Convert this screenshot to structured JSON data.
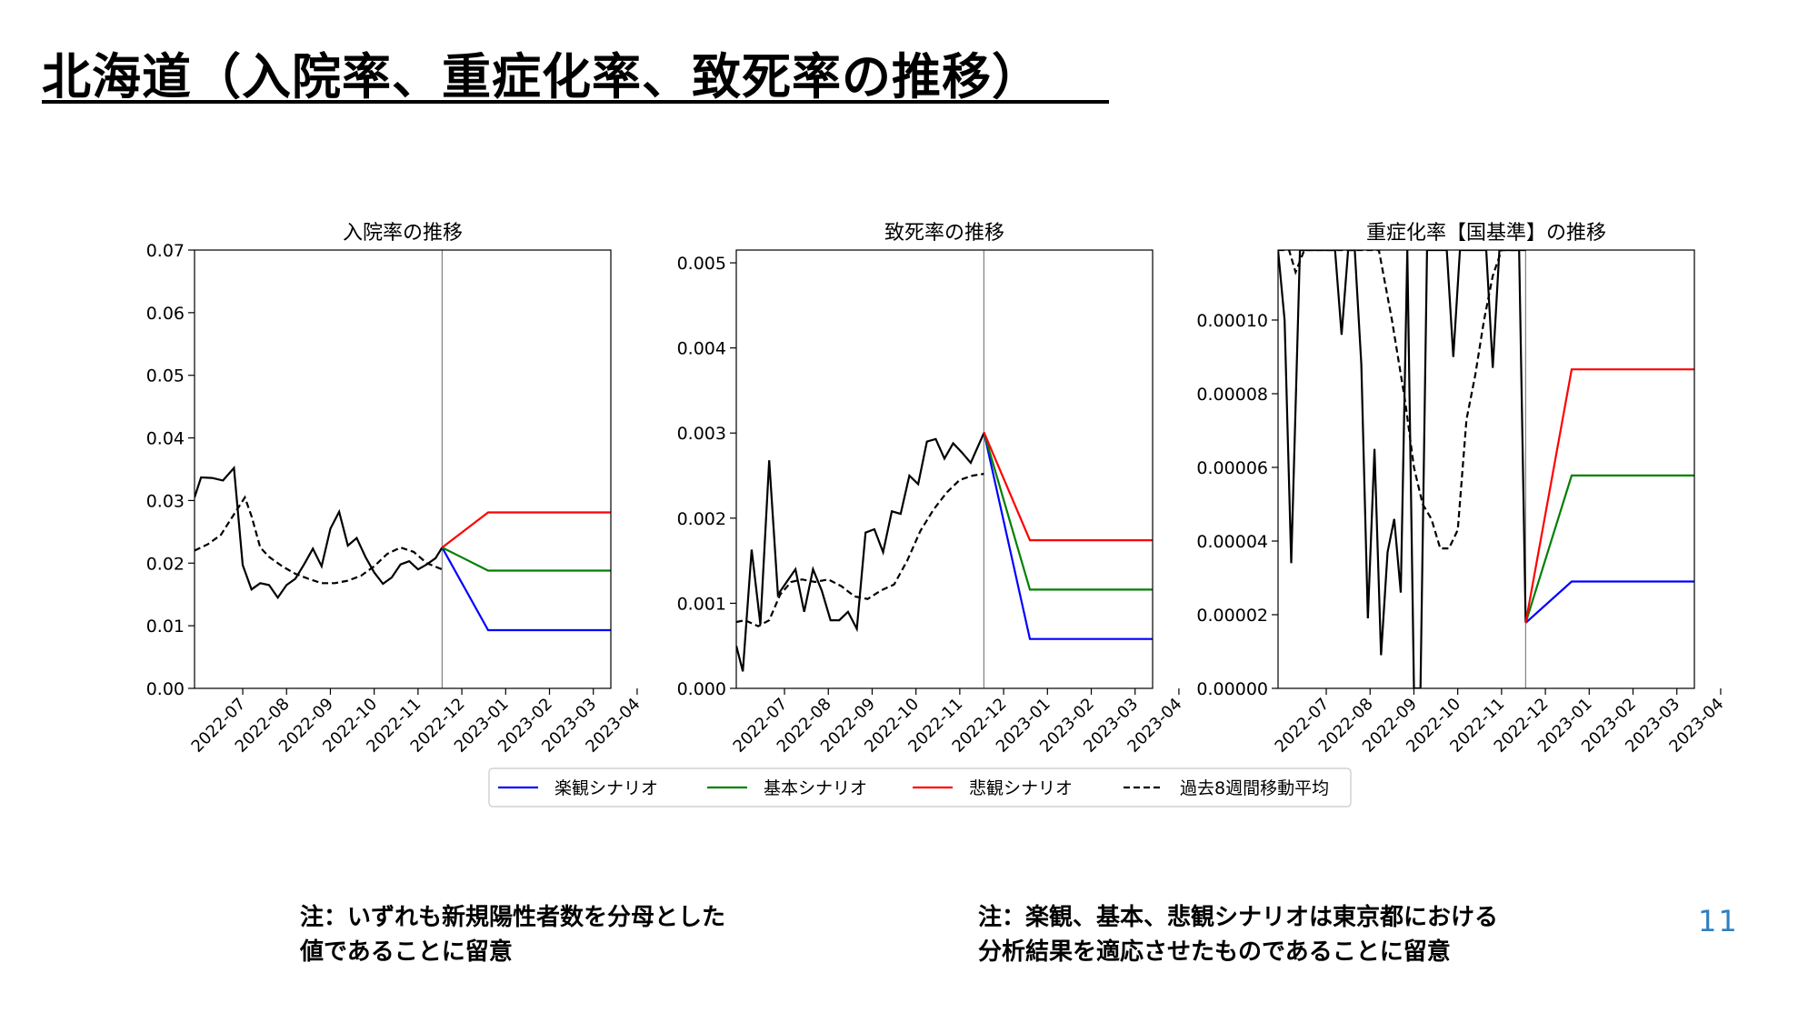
{
  "slide": {
    "title": "北海道（入院率、重症化率、致死率の推移）",
    "note_left": [
      "注：いずれも新規陽性者数を分母とした",
      "値であることに留意"
    ],
    "note_right": [
      "注：楽観、基本、悲観シナリオは東京都における",
      "分析結果を適応させたものであることに留意"
    ],
    "page_number": "11"
  },
  "legend": [
    {
      "label": "楽観シナリオ",
      "color": "#0000ff",
      "dashed": false
    },
    {
      "label": "基本シナリオ",
      "color": "#008000",
      "dashed": false
    },
    {
      "label": "悲観シナリオ",
      "color": "#ff0000",
      "dashed": false
    },
    {
      "label": "過去8週間移動平均",
      "color": "#000000",
      "dashed": true
    }
  ],
  "chart_data": [
    {
      "type": "line",
      "title": "入院率の推移",
      "x_tick_labels": [
        "2022-07",
        "2022-08",
        "2022-09",
        "2022-10",
        "2022-11",
        "2022-12",
        "2023-01",
        "2023-02",
        "2023-03",
        "2023-04"
      ],
      "x_ticks": [
        0,
        1,
        2,
        3,
        4,
        5,
        6,
        7,
        8,
        9
      ],
      "xlim": [
        -1.1,
        8.4
      ],
      "ylim": [
        0,
        0.07
      ],
      "y_ticks": [
        0.0,
        0.01,
        0.02,
        0.03,
        0.04,
        0.05,
        0.06,
        0.07
      ],
      "y_tick_labels": [
        "0.00",
        "0.01",
        "0.02",
        "0.03",
        "0.04",
        "0.05",
        "0.06",
        "0.07"
      ],
      "vline_x": 4.55,
      "actual": {
        "x": [
          -1.1,
          -0.95,
          -0.7,
          -0.45,
          -0.2,
          0.0,
          0.2,
          0.4,
          0.6,
          0.8,
          1.0,
          1.2,
          1.4,
          1.6,
          1.8,
          2.0,
          2.2,
          2.4,
          2.6,
          2.8,
          3.0,
          3.2,
          3.4,
          3.6,
          3.8,
          4.0,
          4.2,
          4.4,
          4.55
        ],
        "y": [
          0.0305,
          0.0337,
          0.0336,
          0.0332,
          0.0352,
          0.0197,
          0.0158,
          0.0168,
          0.0165,
          0.0145,
          0.0165,
          0.0175,
          0.0198,
          0.0223,
          0.0195,
          0.0255,
          0.0282,
          0.0228,
          0.024,
          0.021,
          0.0185,
          0.0167,
          0.0177,
          0.0198,
          0.0203,
          0.019,
          0.0198,
          0.0208,
          0.0225
        ]
      },
      "moving_average": {
        "x": [
          -1.1,
          -0.8,
          -0.5,
          -0.2,
          0.05,
          0.2,
          0.4,
          0.6,
          0.9,
          1.2,
          1.5,
          1.8,
          2.1,
          2.4,
          2.7,
          3.0,
          3.3,
          3.6,
          3.9,
          4.2,
          4.55
        ],
        "y": [
          0.022,
          0.023,
          0.0245,
          0.0278,
          0.0305,
          0.0275,
          0.0225,
          0.021,
          0.0195,
          0.0183,
          0.0175,
          0.0168,
          0.0168,
          0.0172,
          0.018,
          0.0195,
          0.0215,
          0.0225,
          0.0218,
          0.02,
          0.019
        ]
      },
      "series": [
        {
          "name": "楽観シナリオ",
          "x": [
            4.55,
            5.6,
            8.4
          ],
          "y": [
            0.0225,
            0.0093,
            0.0093
          ]
        },
        {
          "name": "基本シナリオ",
          "x": [
            4.55,
            5.6,
            8.4
          ],
          "y": [
            0.0225,
            0.0188,
            0.0188
          ]
        },
        {
          "name": "悲観シナリオ",
          "x": [
            4.55,
            5.6,
            8.4
          ],
          "y": [
            0.0225,
            0.0281,
            0.0281
          ]
        }
      ]
    },
    {
      "type": "line",
      "title": "致死率の推移",
      "x_tick_labels": [
        "2022-07",
        "2022-08",
        "2022-09",
        "2022-10",
        "2022-11",
        "2022-12",
        "2023-01",
        "2023-02",
        "2023-03",
        "2023-04"
      ],
      "x_ticks": [
        0,
        1,
        2,
        3,
        4,
        5,
        6,
        7,
        8,
        9
      ],
      "xlim": [
        -1.1,
        8.4
      ],
      "ylim": [
        0,
        0.00515
      ],
      "y_ticks": [
        0.0,
        0.001,
        0.002,
        0.003,
        0.004,
        0.005
      ],
      "y_tick_labels": [
        "0.000",
        "0.001",
        "0.002",
        "0.003",
        "0.004",
        "0.005"
      ],
      "vline_x": 4.55,
      "actual": {
        "x": [
          -1.1,
          -0.95,
          -0.75,
          -0.55,
          -0.35,
          -0.15,
          0.05,
          0.25,
          0.45,
          0.65,
          0.85,
          1.05,
          1.25,
          1.45,
          1.65,
          1.85,
          2.05,
          2.25,
          2.45,
          2.65,
          2.85,
          3.05,
          3.25,
          3.45,
          3.65,
          3.85,
          4.05,
          4.25,
          4.55
        ],
        "y": [
          0.0005,
          0.0002,
          0.00163,
          0.00075,
          0.00268,
          0.0011,
          0.00125,
          0.0014,
          0.0009,
          0.0014,
          0.00115,
          0.0008,
          0.0008,
          0.0009,
          0.0007,
          0.00183,
          0.00187,
          0.0016,
          0.00208,
          0.00205,
          0.0025,
          0.0024,
          0.0029,
          0.00293,
          0.0027,
          0.00288,
          0.00277,
          0.00265,
          0.003
        ]
      },
      "moving_average": {
        "x": [
          -1.1,
          -0.9,
          -0.6,
          -0.35,
          -0.1,
          0.15,
          0.4,
          0.7,
          1.0,
          1.3,
          1.6,
          1.9,
          2.2,
          2.5,
          2.8,
          3.1,
          3.4,
          3.7,
          4.0,
          4.3,
          4.55
        ],
        "y": [
          0.00078,
          0.0008,
          0.00073,
          0.0008,
          0.0011,
          0.00125,
          0.00128,
          0.00125,
          0.00128,
          0.0012,
          0.00108,
          0.00105,
          0.00115,
          0.00122,
          0.0015,
          0.00185,
          0.0021,
          0.0023,
          0.00245,
          0.0025,
          0.00252
        ]
      },
      "series": [
        {
          "name": "楽観シナリオ",
          "x": [
            4.55,
            5.6,
            8.4
          ],
          "y": [
            0.00301,
            0.00058,
            0.00058
          ]
        },
        {
          "name": "基本シナリオ",
          "x": [
            4.55,
            5.6,
            8.4
          ],
          "y": [
            0.00301,
            0.00116,
            0.00116
          ]
        },
        {
          "name": "悲観シナリオ",
          "x": [
            4.55,
            5.6,
            8.4
          ],
          "y": [
            0.00301,
            0.00174,
            0.00174
          ]
        }
      ]
    },
    {
      "type": "line",
      "title": "重症化率【国基準】の推移",
      "x_tick_labels": [
        "2022-07",
        "2022-08",
        "2022-09",
        "2022-10",
        "2022-11",
        "2022-12",
        "2023-01",
        "2023-02",
        "2023-03",
        "2023-04"
      ],
      "x_ticks": [
        0,
        1,
        2,
        3,
        4,
        5,
        6,
        7,
        8,
        9
      ],
      "xlim": [
        -1.1,
        8.4
      ],
      "ylim": [
        0,
        0.000119
      ],
      "y_ticks": [
        0.0,
        2e-05,
        4e-05,
        6e-05,
        8e-05,
        0.0001
      ],
      "y_tick_labels": [
        "0.00000",
        "0.00002",
        "0.00004",
        "0.00006",
        "0.00008",
        "0.00010"
      ],
      "vline_x": 4.55,
      "actual": {
        "x": [
          -1.1,
          -0.95,
          -0.8,
          -0.6,
          -0.4,
          -0.2,
          0.0,
          0.2,
          0.35,
          0.5,
          0.65,
          0.8,
          0.95,
          1.1,
          1.25,
          1.4,
          1.55,
          1.7,
          1.85,
          2.0,
          2.15,
          2.3,
          2.45,
          2.6,
          2.75,
          2.9,
          3.05,
          3.2,
          3.35,
          3.5,
          3.65,
          3.8,
          3.95,
          4.1,
          4.25,
          4.4,
          4.55
        ],
        "y": [
          0.000119,
          0.0001,
          3.4e-05,
          0.000119,
          0.000119,
          0.000119,
          0.000119,
          0.000119,
          9.6e-05,
          0.000119,
          0.000119,
          8.8e-05,
          1.9e-05,
          6.5e-05,
          9e-06,
          3.7e-05,
          4.6e-05,
          2.6e-05,
          0.000119,
          0.0,
          0.0,
          0.000119,
          0.000119,
          0.000119,
          0.000119,
          9e-05,
          0.000119,
          0.000119,
          0.000119,
          0.000119,
          0.000119,
          8.7e-05,
          0.000119,
          0.000119,
          0.000119,
          0.000119,
          1.8e-05
        ]
      },
      "moving_average": {
        "x": [
          -1.1,
          -0.85,
          -0.7,
          -0.5,
          -0.3,
          -0.1,
          0.1,
          0.3,
          0.6,
          0.9,
          1.2,
          1.5,
          1.8,
          2.0,
          2.2,
          2.4,
          2.6,
          2.8,
          3.0,
          3.2,
          3.4,
          3.6,
          3.8,
          4.0,
          4.2,
          4.55
        ],
        "y": [
          0.000119,
          0.000119,
          0.000113,
          0.000119,
          0.000119,
          0.000119,
          0.000119,
          0.000119,
          0.000119,
          0.000119,
          0.000119,
          0.0001,
          7.8e-05,
          6e-05,
          5e-05,
          4.6e-05,
          3.8e-05,
          3.8e-05,
          4.3e-05,
          7.3e-05,
          8.5e-05,
          0.0001,
          0.000112,
          0.000119,
          0.000119,
          0.000119
        ]
      },
      "series": [
        {
          "name": "楽観シナリオ",
          "x": [
            4.55,
            5.6,
            8.4
          ],
          "y": [
            1.78e-05,
            2.9e-05,
            2.9e-05
          ]
        },
        {
          "name": "基本シナリオ",
          "x": [
            4.55,
            5.6,
            8.4
          ],
          "y": [
            1.78e-05,
            5.78e-05,
            5.78e-05
          ]
        },
        {
          "name": "悲観シナリオ",
          "x": [
            4.55,
            5.6,
            8.4
          ],
          "y": [
            1.78e-05,
            8.66e-05,
            8.66e-05
          ]
        }
      ]
    }
  ]
}
